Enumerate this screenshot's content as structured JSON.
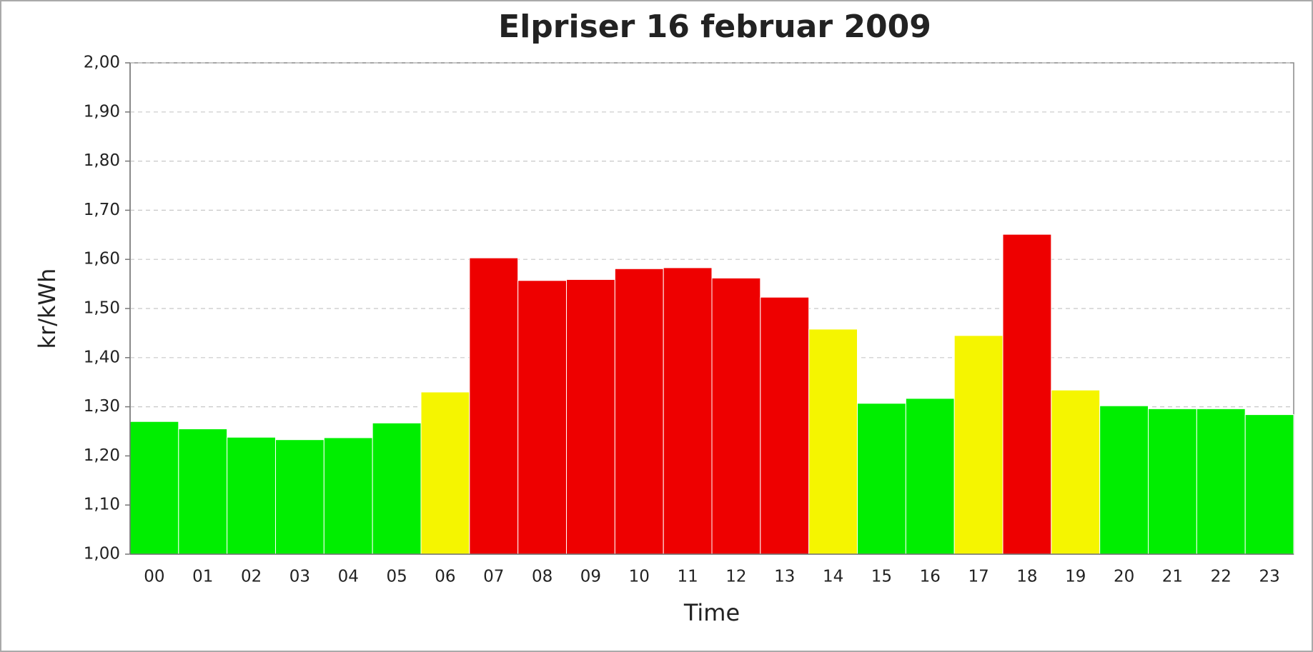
{
  "chart_data": {
    "type": "bar",
    "title": "Elpriser 16 februar 2009",
    "x_label": "Time",
    "y_label": "kr/kWh",
    "categories": [
      "00",
      "01",
      "02",
      "03",
      "04",
      "05",
      "06",
      "07",
      "08",
      "09",
      "10",
      "11",
      "12",
      "13",
      "14",
      "15",
      "16",
      "17",
      "18",
      "19",
      "20",
      "21",
      "22",
      "23"
    ],
    "values": [
      1.27,
      1.255,
      1.238,
      1.233,
      1.237,
      1.267,
      1.33,
      1.603,
      1.557,
      1.559,
      1.581,
      1.583,
      1.562,
      1.523,
      1.458,
      1.307,
      1.317,
      1.445,
      1.651,
      1.334,
      1.302,
      1.296,
      1.296,
      1.284
    ],
    "colors": [
      "#00ee00",
      "#00ee00",
      "#00ee00",
      "#00ee00",
      "#00ee00",
      "#00ee00",
      "#f5f500",
      "#ee0000",
      "#ee0000",
      "#ee0000",
      "#ee0000",
      "#ee0000",
      "#ee0000",
      "#ee0000",
      "#f5f500",
      "#00ee00",
      "#00ee00",
      "#f5f500",
      "#ee0000",
      "#f5f500",
      "#00ee00",
      "#00ee00",
      "#00ee00",
      "#00ee00"
    ],
    "ylim": [
      1.0,
      2.0
    ],
    "yticks": [
      {
        "value": 1.0,
        "label": "1,00"
      },
      {
        "value": 1.1,
        "label": "1,10"
      },
      {
        "value": 1.2,
        "label": "1,20"
      },
      {
        "value": 1.3,
        "label": "1,30"
      },
      {
        "value": 1.4,
        "label": "1,40"
      },
      {
        "value": 1.5,
        "label": "1,50"
      },
      {
        "value": 1.6,
        "label": "1,60"
      },
      {
        "value": 1.7,
        "label": "1,70"
      },
      {
        "value": 1.8,
        "label": "1,80"
      },
      {
        "value": 1.9,
        "label": "1,90"
      },
      {
        "value": 2.0,
        "label": "2,00"
      }
    ],
    "grid": true
  }
}
